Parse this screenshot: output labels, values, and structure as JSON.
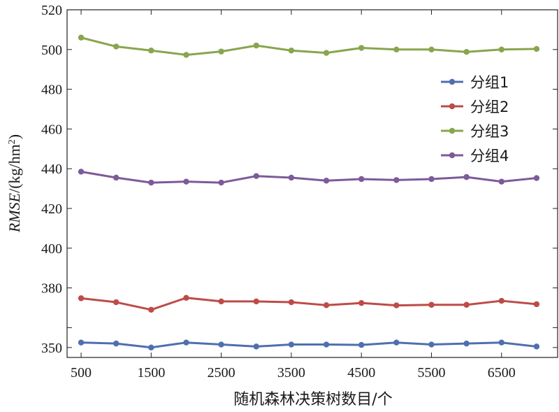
{
  "chart_data": {
    "type": "line",
    "xlabel": "随机森林决策树数目/个",
    "ylabel": "RMSE/(kg/hm²)",
    "ylabel_parts": {
      "italic": "RMSE",
      "rest": "/(kg/hm",
      "sup": "2",
      "close": ")"
    },
    "xlim": [
      300,
      7300
    ],
    "ylim": [
      345,
      520
    ],
    "x_ticks": [
      500,
      1500,
      2500,
      3500,
      4500,
      5500,
      6500
    ],
    "y_ticks": [
      350,
      360,
      380,
      400,
      420,
      440,
      460,
      480,
      500,
      520
    ],
    "y_tick_labels": [
      "350",
      "",
      "380",
      "400",
      "420",
      "440",
      "460",
      "480",
      "500",
      "520"
    ],
    "x": [
      500,
      1000,
      1500,
      2000,
      2500,
      3000,
      3500,
      4000,
      4500,
      5000,
      5500,
      6000,
      6500,
      7000
    ],
    "legend_position": "right",
    "series": [
      {
        "name": "分组1",
        "color": "#4f6faf",
        "values": [
          352.5,
          352,
          350,
          352.5,
          351.5,
          350.5,
          351.5,
          351.5,
          351.3,
          352.5,
          351.5,
          352,
          352.5,
          350.5
        ]
      },
      {
        "name": "分组2",
        "color": "#be4b48",
        "values": [
          374.8,
          372.8,
          369,
          375,
          373.2,
          373.2,
          372.8,
          371.3,
          372.4,
          371.2,
          371.5,
          371.5,
          373.5,
          371.8
        ]
      },
      {
        "name": "分组3",
        "color": "#89a54e",
        "values": [
          506,
          501.5,
          499.5,
          497.3,
          499,
          502,
          499.5,
          498.3,
          500.8,
          500,
          500,
          498.8,
          500,
          500.3
        ]
      },
      {
        "name": "分组4",
        "color": "#7d5a99",
        "values": [
          438.5,
          435.5,
          433,
          433.5,
          433,
          436.3,
          435.5,
          434,
          434.8,
          434.3,
          434.8,
          435.8,
          433.5,
          435.3
        ]
      }
    ]
  }
}
